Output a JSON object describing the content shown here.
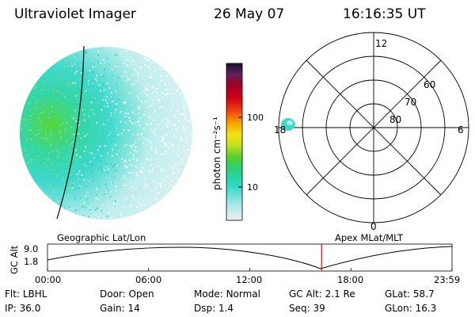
{
  "header": {
    "title": "Ultraviolet Imager",
    "date": "26 May 07",
    "time": "16:16:35 UT"
  },
  "colorbar": {
    "label": "photon cm⁻²s⁻¹",
    "ticks": [
      "100",
      "10"
    ]
  },
  "polar_plot": {
    "lat_labels": [
      "80",
      "70",
      "60"
    ],
    "mlt_labels": [
      "12",
      "18",
      "6",
      "0"
    ],
    "colors": {
      "grid": "#000000",
      "spot": "#40d8c8"
    }
  },
  "image_labels": {
    "left": "Geographic Lat/Lon",
    "right": "Apex MLat/MLT"
  },
  "timeline": {
    "axis_label": "GC Alt",
    "y_top": "9.0",
    "y_bottom": "1.8",
    "ticks": [
      "00:00",
      "06:00",
      "12:00",
      "18:00",
      "23:59"
    ],
    "current_marker_color": "#ff0000",
    "current_time_fraction": 0.6776
  },
  "info": {
    "row1": [
      {
        "label": "Flt:",
        "value": "LBHL"
      },
      {
        "label": "Door:",
        "value": "Open"
      },
      {
        "label": "Mode:",
        "value": "Normal"
      },
      {
        "label": "GC Alt:",
        "value": "2.1 Re"
      },
      {
        "label": "GLat:",
        "value": "58.7"
      }
    ],
    "row2": [
      {
        "label": "IP:",
        "value": "36.0"
      },
      {
        "label": "Gain:",
        "value": "14"
      },
      {
        "label": "Dsp:",
        "value": "1.4"
      },
      {
        "label": "Seq:",
        "value": "39"
      },
      {
        "label": "GLon:",
        "value": "16.3"
      }
    ]
  }
}
